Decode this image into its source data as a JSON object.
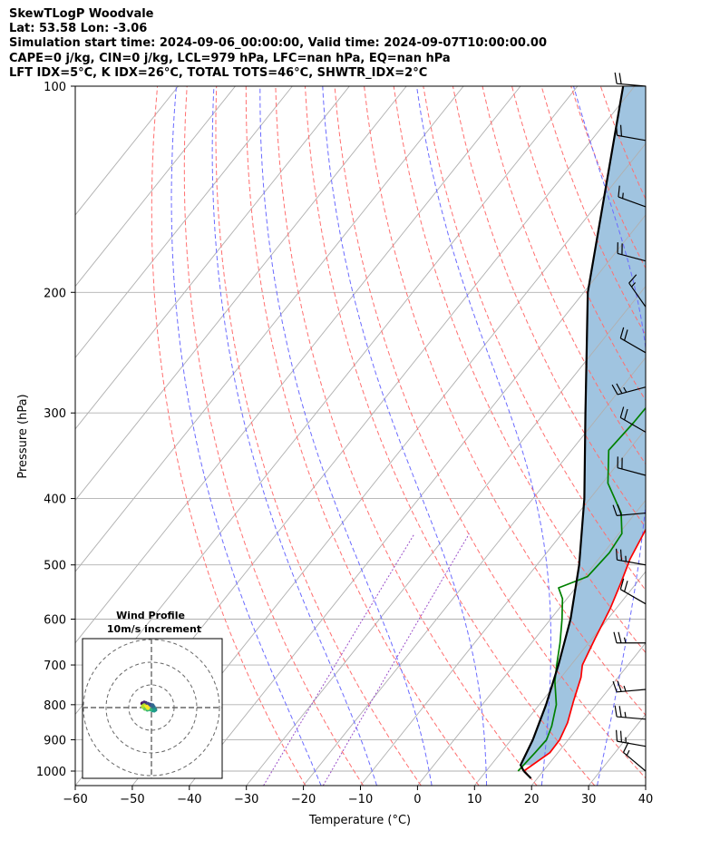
{
  "chart_data": {
    "type": "line",
    "title_lines": [
      "SkewTLogP Woodvale",
      "Lat: 53.58   Lon: -3.06",
      "Simulation start time: 2024-09-06_00:00:00, Valid time: 2024-09-07T10:00:00.00",
      "CAPE=0 j/kg, CIN=0 j/kg, LCL=979 hPa, LFC=nan hPa, EQ=nan hPa",
      "LFT IDX=5°C, K IDX=26°C, TOTAL TOTS=46°C, SHWTR_IDX=2°C"
    ],
    "xlabel": "Temperature (°C)",
    "ylabel": "Pressure (hPa)",
    "xlim": [
      -60,
      40
    ],
    "ylim": [
      1050,
      100
    ],
    "y_scale": "log",
    "xticks": [
      -60,
      -50,
      -40,
      -30,
      -20,
      -10,
      0,
      10,
      20,
      30,
      40
    ],
    "yticks": [
      1000,
      900,
      800,
      700,
      600,
      500,
      400,
      300,
      200,
      100
    ],
    "grid": true,
    "colors": {
      "temperature": "#ff0000",
      "dewpoint": "#008000",
      "parcel": "#000000",
      "shading": "#a0c4e0",
      "dry_adiabats": "#ff6f6f",
      "moist_adiabats": "#6b6bff",
      "mixing_ratio": "#9a4fc9",
      "isotherms": "#b0b0b0"
    },
    "series": [
      {
        "key": "temperature",
        "x": [
          16.6,
          18.6,
          18.5,
          17.5,
          15.5,
          13.5,
          12.0,
          10.5,
          9.0,
          7.2,
          5.5,
          4.0,
          1.6,
          -1.5,
          -4.6,
          -7.0,
          -9.6,
          -10.0,
          -9.0,
          -7.0,
          -5.8,
          -5.7,
          -6.4,
          -7.8,
          -10.0,
          -11.3
        ],
        "y": [
          1000,
          940,
          900,
          850,
          790,
          730,
          700,
          640,
          580,
          530,
          490,
          440,
          400,
          350,
          300,
          265,
          240,
          225,
          205,
          193,
          180,
          160,
          140,
          125,
          110,
          100
        ]
      },
      {
        "key": "dewpoint",
        "x": [
          15.6,
          16.0,
          16.2,
          15.2,
          13.0,
          9.5,
          7.5,
          5.0,
          2.0,
          -0.8,
          -3.0,
          0.5,
          1.0,
          0.5,
          -2.5,
          -9.0,
          -13.5,
          -13.0,
          -12.8,
          -15.2,
          -16.0,
          -16.5,
          -17.0,
          -18.7,
          -22.0,
          -12.0,
          -14.5
        ],
        "y": [
          1000,
          940,
          900,
          860,
          800,
          740,
          700,
          650,
          600,
          560,
          540,
          520,
          480,
          450,
          420,
          380,
          340,
          310,
          270,
          245,
          215,
          200,
          180,
          167,
          140,
          115,
          100
        ]
      },
      {
        "key": "parcel",
        "x": [
          16.6,
          15.2,
          13.8,
          11.2,
          7.8,
          3.5,
          -2.6,
          -11.0,
          -22.8,
          -39.3,
          -62.0
        ],
        "y": [
          1000,
          980,
          900,
          800,
          700,
          600,
          500,
          400,
          300,
          200,
          100
        ]
      }
    ],
    "wind_barbs": [
      {
        "p": 100,
        "speed": 20,
        "dir": 275
      },
      {
        "p": 120,
        "speed": 20,
        "dir": 280
      },
      {
        "p": 150,
        "speed": 15,
        "dir": 290
      },
      {
        "p": 180,
        "speed": 20,
        "dir": 285
      },
      {
        "p": 210,
        "speed": 15,
        "dir": 325
      },
      {
        "p": 245,
        "speed": 20,
        "dir": 300
      },
      {
        "p": 275,
        "speed": 25,
        "dir": 255
      },
      {
        "p": 320,
        "speed": 20,
        "dir": 300
      },
      {
        "p": 370,
        "speed": 20,
        "dir": 285
      },
      {
        "p": 420,
        "speed": 20,
        "dir": 265
      },
      {
        "p": 500,
        "speed": 25,
        "dir": 280
      },
      {
        "p": 570,
        "speed": 20,
        "dir": 300
      },
      {
        "p": 650,
        "speed": 25,
        "dir": 270
      },
      {
        "p": 760,
        "speed": 25,
        "dir": 265
      },
      {
        "p": 840,
        "speed": 25,
        "dir": 275
      },
      {
        "p": 920,
        "speed": 25,
        "dir": 280
      },
      {
        "p": 1000,
        "speed": 15,
        "dir": 310
      }
    ],
    "hodograph": {
      "title_lines": [
        "Wind Profile",
        "10m/s increment"
      ],
      "u": [
        -3.0,
        -3.5,
        -4.0,
        -3.2,
        -2.5,
        -1.5,
        -0.5,
        0.5,
        1.0,
        1.4,
        1.7,
        1.2,
        0.4,
        -0.6,
        -1.8,
        -2.9,
        -3.6,
        -3.8,
        -3.2,
        -2.0,
        -1.5
      ],
      "v": [
        0.5,
        1.2,
        1.8,
        2.2,
        2.0,
        1.6,
        1.3,
        1.0,
        0.3,
        -0.5,
        -1.0,
        -1.3,
        -1.2,
        -0.8,
        -0.9,
        -0.5,
        0.2,
        0.6,
        1.0,
        0.4,
        -0.2
      ]
    }
  }
}
